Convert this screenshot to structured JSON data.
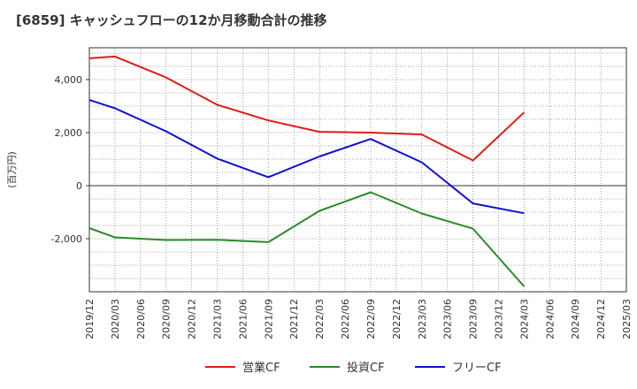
{
  "chart_data": {
    "type": "line",
    "title": "[6859]  キャッシュフローの12か月移動合計の推移",
    "ylabel": "(百万円)",
    "xlabel": "",
    "ylim": [
      -4000,
      5200
    ],
    "yticks": [
      -2000,
      0,
      2000,
      4000
    ],
    "ytick_labels": [
      "-2,000",
      "0",
      "2,000",
      "4,000"
    ],
    "categories": [
      "2019/12",
      "2020/03",
      "2020/06",
      "2020/09",
      "2020/12",
      "2021/03",
      "2021/06",
      "2021/09",
      "2021/12",
      "2022/03",
      "2022/06",
      "2022/09",
      "2022/12",
      "2023/03",
      "2023/06",
      "2023/09",
      "2023/12",
      "2024/03",
      "2024/06",
      "2024/09",
      "2024/12",
      "2025/03"
    ],
    "grid": true,
    "legend_position": "bottom",
    "series": [
      {
        "name": "営業CF",
        "color": "#dd1c1c",
        "points": [
          [
            "2019/12",
            4800
          ],
          [
            "2020/03",
            4870
          ],
          [
            "2020/09",
            4080
          ],
          [
            "2021/03",
            3050
          ],
          [
            "2021/09",
            2460
          ],
          [
            "2022/03",
            2030
          ],
          [
            "2022/09",
            2000
          ],
          [
            "2023/03",
            1930
          ],
          [
            "2023/09",
            950
          ],
          [
            "2024/03",
            2760
          ]
        ]
      },
      {
        "name": "投資CF",
        "color": "#2b8a2b",
        "points": [
          [
            "2019/12",
            -1600
          ],
          [
            "2020/03",
            -1950
          ],
          [
            "2020/09",
            -2050
          ],
          [
            "2021/03",
            -2040
          ],
          [
            "2021/09",
            -2130
          ],
          [
            "2022/03",
            -950
          ],
          [
            "2022/09",
            -250
          ],
          [
            "2023/03",
            -1050
          ],
          [
            "2023/09",
            -1620
          ],
          [
            "2024/03",
            -3800
          ]
        ]
      },
      {
        "name": "フリーCF",
        "color": "#1010d0",
        "points": [
          [
            "2019/12",
            3230
          ],
          [
            "2020/03",
            2920
          ],
          [
            "2020/09",
            2050
          ],
          [
            "2021/03",
            1020
          ],
          [
            "2021/09",
            320
          ],
          [
            "2022/03",
            1100
          ],
          [
            "2022/09",
            1760
          ],
          [
            "2023/03",
            880
          ],
          [
            "2023/09",
            -670
          ],
          [
            "2024/03",
            -1040
          ]
        ]
      }
    ]
  }
}
